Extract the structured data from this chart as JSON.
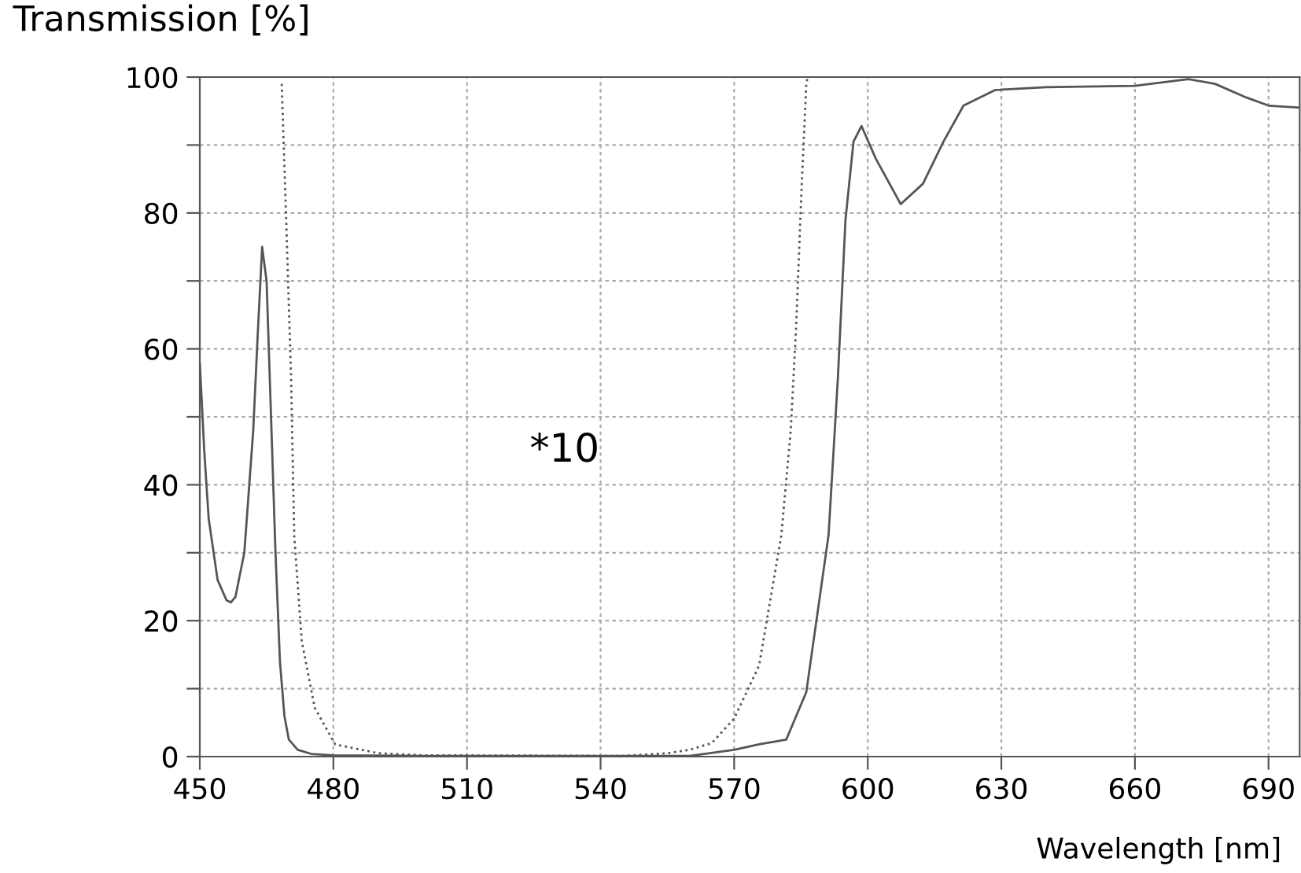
{
  "chart_data": {
    "type": "line",
    "ylabel": "Transmission [%]",
    "xlabel": "Wavelength [nm]",
    "xlim": [
      450,
      697
    ],
    "ylim": [
      0,
      100
    ],
    "xticks": [
      450,
      480,
      510,
      540,
      570,
      600,
      630,
      660,
      690
    ],
    "yticks": [
      0,
      {
        "value": 10,
        "label": null
      },
      20,
      {
        "value": 30,
        "label": null
      },
      40,
      {
        "value": 50,
        "label": null
      },
      60,
      {
        "value": 70,
        "label": null
      },
      80,
      {
        "value": 90,
        "label": null
      },
      100
    ],
    "grid": true,
    "legend": false,
    "marker": "none",
    "annotations": [
      "*10"
    ],
    "series": [
      {
        "color": "#555555",
        "line_style": "solid",
        "x": [
          450,
          451,
          452,
          454,
          456,
          457,
          458,
          460,
          462,
          463,
          464,
          465,
          466,
          467,
          468,
          469,
          470,
          472,
          475,
          480,
          500,
          560,
          570,
          575.6,
          581.7,
          586.2,
          591.2,
          593.3,
          595,
          596.8,
          598.6,
          601.8,
          607.4,
          612.4,
          617,
          621.5,
          628.6,
          640,
          660,
          672,
          678,
          685,
          690,
          697
        ],
        "values": [
          58,
          45,
          35,
          26,
          23,
          22.7,
          23.5,
          30,
          48,
          62,
          75,
          70,
          50,
          30,
          14,
          6,
          2.5,
          1,
          0.4,
          0.2,
          0.1,
          0.1,
          1,
          1.8,
          2.5,
          9.5,
          32.6,
          55.8,
          79,
          90.5,
          92.8,
          88,
          81.3,
          84.3,
          90.5,
          95.8,
          98.1,
          98.5,
          98.7,
          99.7,
          99,
          97,
          95.8,
          95.5
        ]
      },
      {
        "color": "#555555",
        "line_style": "dotted",
        "x": [
          468.4,
          469.4,
          470.5,
          471.2,
          472.9,
          475.8,
          480.4,
          490,
          500,
          545,
          555,
          560,
          565,
          570,
          575.6,
          580.6,
          582.7,
          583.9,
          585.1,
          586.2,
          586.5
        ],
        "values": [
          99,
          79,
          55.8,
          32.6,
          17,
          7.2,
          1.8,
          0.5,
          0.2,
          0.1,
          0.5,
          1,
          2,
          5.6,
          13.4,
          32.6,
          48,
          63,
          83,
          99,
          100
        ]
      }
    ]
  }
}
